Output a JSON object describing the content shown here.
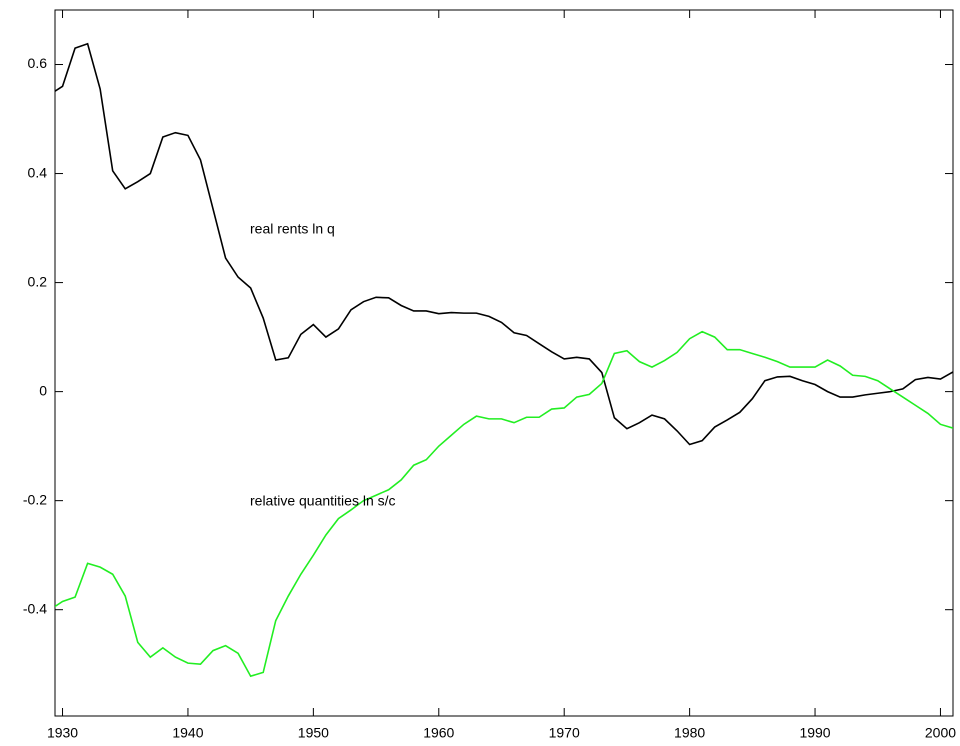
{
  "chart_data": {
    "type": "line",
    "x": [
      1929,
      1930,
      1931,
      1932,
      1933,
      1934,
      1935,
      1936,
      1937,
      1938,
      1939,
      1940,
      1941,
      1942,
      1943,
      1944,
      1945,
      1946,
      1947,
      1948,
      1949,
      1950,
      1951,
      1952,
      1953,
      1954,
      1955,
      1956,
      1957,
      1958,
      1959,
      1960,
      1961,
      1962,
      1963,
      1964,
      1965,
      1966,
      1967,
      1968,
      1969,
      1970,
      1971,
      1972,
      1973,
      1974,
      1975,
      1976,
      1977,
      1978,
      1979,
      1980,
      1981,
      1982,
      1983,
      1984,
      1985,
      1986,
      1987,
      1988,
      1989,
      1990,
      1991,
      1992,
      1993,
      1994,
      1995,
      1996,
      1997,
      1998,
      1999,
      2000,
      2001
    ],
    "series": [
      {
        "color": "#000000",
        "values": [
          0.545,
          0.56,
          0.63,
          0.638,
          0.555,
          0.405,
          0.372,
          0.385,
          0.4,
          0.467,
          0.475,
          0.47,
          0.425,
          0.335,
          0.245,
          0.21,
          0.19,
          0.135,
          0.058,
          0.062,
          0.105,
          0.123,
          0.1,
          0.115,
          0.15,
          0.165,
          0.173,
          0.172,
          0.158,
          0.148,
          0.148,
          0.143,
          0.145,
          0.144,
          0.144,
          0.138,
          0.127,
          0.108,
          0.103,
          0.088,
          0.073,
          0.06,
          0.063,
          0.06,
          0.035,
          -0.048,
          -0.068,
          -0.057,
          -0.043,
          -0.05,
          -0.072,
          -0.097,
          -0.09,
          -0.065,
          -0.052,
          -0.038,
          -0.013,
          0.02,
          0.027,
          0.028,
          0.02,
          0.013,
          0,
          -0.01,
          -0.01,
          -0.006,
          -0.003,
          0,
          0.005,
          0.022,
          0.026,
          0.023,
          0.036
        ]
      },
      {
        "color": "#22ee22",
        "values": [
          -0.4,
          -0.385,
          -0.377,
          -0.315,
          -0.322,
          -0.335,
          -0.375,
          -0.46,
          -0.487,
          -0.47,
          -0.487,
          -0.498,
          -0.5,
          -0.475,
          -0.466,
          -0.48,
          -0.522,
          -0.515,
          -0.42,
          -0.375,
          -0.335,
          -0.3,
          -0.263,
          -0.233,
          -0.217,
          -0.2,
          -0.19,
          -0.18,
          -0.162,
          -0.135,
          -0.125,
          -0.1,
          -0.08,
          -0.06,
          -0.045,
          -0.05,
          -0.05,
          -0.057,
          -0.047,
          -0.047,
          -0.032,
          -0.03,
          -0.01,
          -0.005,
          0.015,
          0.07,
          0.075,
          0.055,
          0.045,
          0.057,
          0.072,
          0.097,
          0.11,
          0.1,
          0.077,
          0.077,
          0.07,
          0.063,
          0.055,
          0.045,
          0.045,
          0.045,
          0.058,
          0.047,
          0.03,
          0.028,
          0.02,
          0.005,
          -0.01,
          -0.025,
          -0.04,
          -0.06,
          -0.067
        ]
      }
    ],
    "annotations": [
      "real rents ln q",
      "relative quantities ln s/c"
    ],
    "xlim": [
      1929.4,
      2001
    ],
    "xticks": [
      1930,
      1940,
      1950,
      1960,
      1970,
      1980,
      1990,
      2000
    ],
    "ylim": [
      -0.595,
      0.7
    ],
    "yticks": [
      -0.4,
      -0.2,
      0,
      0.2,
      0.4,
      0.6
    ],
    "grid": false
  }
}
